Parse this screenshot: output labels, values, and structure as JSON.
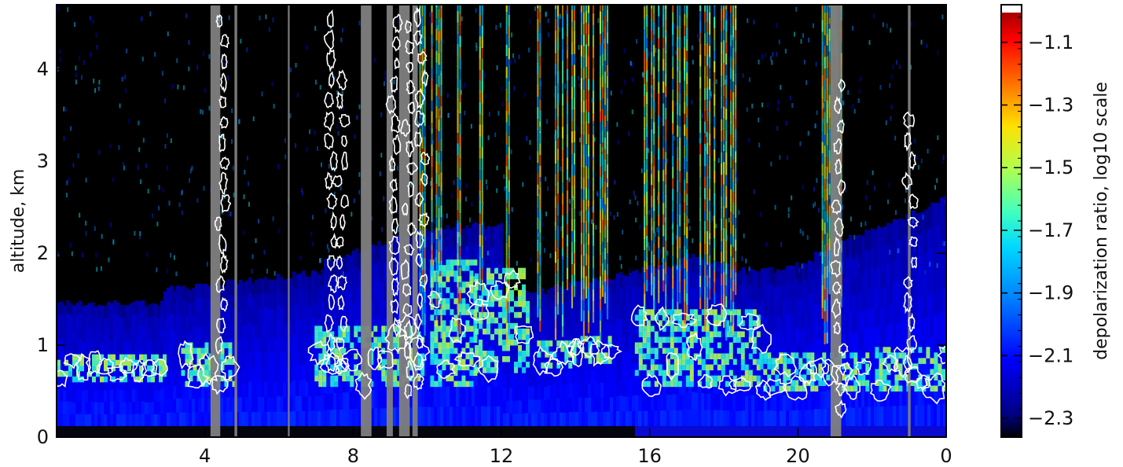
{
  "chart_data": {
    "type": "heatmap",
    "title": "",
    "xlabel": "",
    "ylabel": "altitude, km",
    "x_ticks": [
      "4",
      "8",
      "12",
      "16",
      "20",
      "0"
    ],
    "y_ticks": [
      "0",
      "1",
      "2",
      "3",
      "4"
    ],
    "ylim": [
      0,
      4.7
    ],
    "colorbar": {
      "label": "depolarization ratio, log10 scale",
      "ticks": [
        "-1.1",
        "-1.3",
        "-1.5",
        "-1.7",
        "-1.9",
        "-2.1",
        "-2.3"
      ],
      "range": [
        -2.36,
        -0.98
      ],
      "colors": [
        "#000000",
        "#0000a0",
        "#0000ff",
        "#0078ff",
        "#00d2ff",
        "#3cffc8",
        "#b4ff50",
        "#ffe600",
        "#ff7800",
        "#ff0000",
        "#8c0000"
      ]
    },
    "no_data_color": "#808080",
    "contour_color": "#ffffff"
  }
}
